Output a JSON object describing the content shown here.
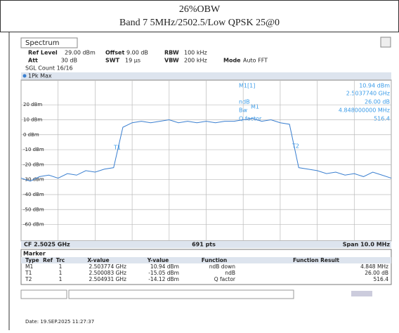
{
  "header": {
    "title": "26%OBW",
    "subtitle": "Band 7 5MHz/2502.5/Low QPSK 25@0"
  },
  "instrument": {
    "tab": "Spectrum",
    "ref_level_label": "Ref Level",
    "ref_level": "29.00 dBm",
    "offset_label": "Offset",
    "offset": "9.00 dB",
    "rbw_label": "RBW",
    "rbw": "100 kHz",
    "att_label": "Att",
    "att": "30 dB",
    "swt_label": "SWT",
    "swt": "19 µs",
    "vbw_label": "VBW",
    "vbw": "200 kHz",
    "mode_label": "Mode",
    "mode": "Auto FFT",
    "count": "SGL Count 16/16"
  },
  "marker_info": {
    "name": "M1[1]",
    "level": "10.94 dBm",
    "freq": "2.5037740 GHz",
    "ndb_label": "ndB",
    "ndb": "26.00 dB",
    "bw_label": "Bw",
    "bw": "4.848000000 MHz",
    "q_label": "Q factor",
    "q": "516.4"
  },
  "chart_data": {
    "type": "line",
    "series": [
      {
        "name": "1Pk Max",
        "color": "#3a7fd0",
        "x": [
          2.4975,
          2.49775,
          2.498,
          2.49825,
          2.4985,
          2.49875,
          2.499,
          2.49925,
          2.4995,
          2.49975,
          2.5,
          2.50025,
          2.5005,
          2.50075,
          2.501,
          2.50125,
          2.5015,
          2.50175,
          2.502,
          2.50225,
          2.5025,
          2.50275,
          2.503,
          2.50325,
          2.5035,
          2.50375,
          2.504,
          2.50425,
          2.5045,
          2.50475,
          2.505,
          2.50525,
          2.5055,
          2.50575,
          2.506,
          2.50625,
          2.5065,
          2.50675,
          2.507,
          2.50725,
          2.5075
        ],
        "values": [
          -29,
          -31,
          -28,
          -27,
          -29,
          -26,
          -27,
          -24,
          -25,
          -23,
          -22,
          5,
          8,
          9,
          8,
          9,
          10,
          8,
          9,
          8,
          9,
          8,
          9,
          9,
          10,
          10.9,
          9,
          10,
          8,
          7,
          -22,
          -23,
          -24,
          -26,
          -25,
          -27,
          -26,
          -28,
          -25,
          -27,
          -29
        ]
      }
    ],
    "xlim": [
      2.4975,
      2.5075
    ],
    "xticks": [
      2.4975,
      2.4985,
      2.4995,
      2.5005,
      2.5015,
      2.5025,
      2.5035,
      2.5045,
      2.5055,
      2.5065,
      2.5075
    ],
    "ylim": [
      -71,
      29
    ],
    "yticks": [
      {
        "value": 20,
        "label": "20 dBm"
      },
      {
        "value": 10,
        "label": "10 dBm"
      },
      {
        "value": 0,
        "label": "0 dBm"
      },
      {
        "value": -10,
        "label": "-10 dBm"
      },
      {
        "value": -20,
        "label": "-20 dBm"
      },
      {
        "value": -30,
        "label": "-30 dBm"
      },
      {
        "value": -40,
        "label": "-40 dBm"
      },
      {
        "value": -50,
        "label": "-50 dBm"
      },
      {
        "value": -60,
        "label": "-60 dBm"
      }
    ],
    "grid": true,
    "cf": "CF 2.5025 GHz",
    "points": "691 pts",
    "span": "Span 10.0 MHz"
  },
  "marker_table": {
    "title": "Marker",
    "columns": [
      "Type",
      "Ref",
      "Trc",
      "X-value",
      "Y-value",
      "Function",
      "Function Result"
    ],
    "rows": [
      [
        "M1",
        "",
        "1",
        "2.503774 GHz",
        "10.94 dBm",
        "ndB down",
        "4.848 MHz"
      ],
      [
        "T1",
        "",
        "1",
        "2.500083 GHz",
        "-15.05 dBm",
        "ndB",
        "26.00 dB"
      ],
      [
        "T2",
        "",
        "1",
        "2.504931 GHz",
        "-14.12 dBm",
        "Q factor",
        "516.4"
      ]
    ]
  },
  "footer": "Date: 19.SEP.2025  11:27:37"
}
